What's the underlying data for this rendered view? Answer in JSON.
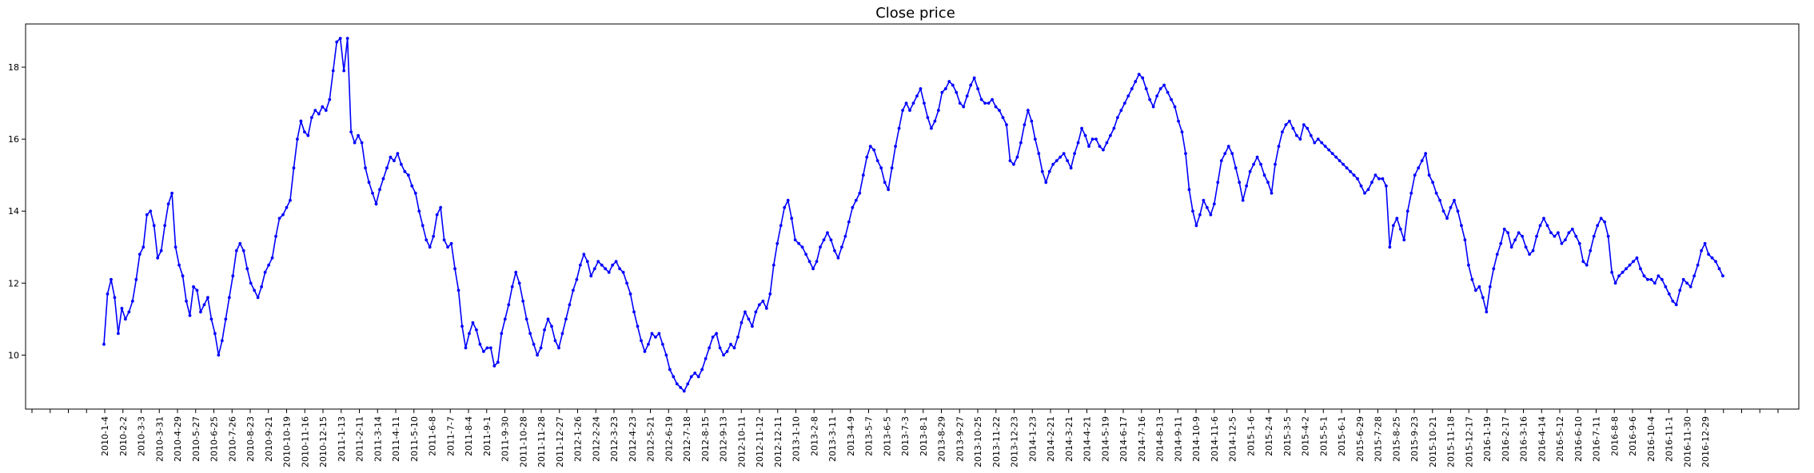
{
  "chart_data": {
    "type": "line",
    "title": "Close price",
    "xlabel": "",
    "ylabel": "",
    "ylim": [
      8.5,
      19.2
    ],
    "yticks": [
      10,
      12,
      14,
      16,
      18
    ],
    "grid": false,
    "legend": "none",
    "colors": {
      "line": "#0000ff",
      "marker": "#0000ff",
      "axes": "#000000"
    },
    "x_tick_labels": [
      "2010-1-4",
      "2010-2-2",
      "2010-3-3",
      "2010-3-31",
      "2010-4-29",
      "2010-5-27",
      "2010-6-25",
      "2010-7-26",
      "2010-8-23",
      "2010-9-21",
      "2010-10-19",
      "2010-11-16",
      "2010-12-15",
      "2011-1-13",
      "2011-2-11",
      "2011-3-14",
      "2011-4-11",
      "2011-5-10",
      "2011-6-8",
      "2011-7-7",
      "2011-8-4",
      "2011-9-1",
      "2011-9-30",
      "2011-10-28",
      "2011-11-28",
      "2011-12-27",
      "2012-1-26",
      "2012-2-24",
      "2012-3-23",
      "2012-4-23",
      "2012-5-21",
      "2012-6-19",
      "2012-7-18",
      "2012-8-15",
      "2012-9-13",
      "2012-10-11",
      "2012-11-12",
      "2012-12-11",
      "2013-1-10",
      "2013-2-8",
      "2013-3-11",
      "2013-4-9",
      "2013-5-7",
      "2013-6-5",
      "2013-7-3",
      "2013-8-1",
      "2013-8-29",
      "2013-9-27",
      "2013-10-25",
      "2013-11-22",
      "2013-12-23",
      "2014-1-23",
      "2014-2-21",
      "2014-3-21",
      "2014-4-21",
      "2014-5-19",
      "2014-6-17",
      "2014-7-16",
      "2014-8-13",
      "2014-9-11",
      "2014-10-9",
      "2014-11-6",
      "2014-12-5",
      "2015-1-6",
      "2015-2-4",
      "2015-3-5",
      "2015-4-2",
      "2015-5-1",
      "2015-6-1",
      "2015-6-29",
      "2015-7-28",
      "2015-8-25",
      "2015-9-23",
      "2015-10-21",
      "2015-11-18",
      "2015-12-17",
      "2016-1-19",
      "2016-2-17",
      "2016-3-16",
      "2016-4-14",
      "2016-5-12",
      "2016-6-10",
      "2016-7-11",
      "2016-8-8",
      "2016-9-6",
      "2016-10-4",
      "2016-11-1",
      "2016-11-30",
      "2016-12-29"
    ],
    "series": [
      {
        "values": [
          10.3,
          11.7,
          12.1,
          11.6,
          10.6,
          11.3,
          11.0,
          11.2,
          11.5,
          12.1,
          12.8,
          13.0,
          13.9,
          14.0,
          13.6,
          12.7,
          12.9,
          13.6,
          14.2,
          14.5,
          13.0,
          12.5,
          12.2,
          11.5,
          11.1,
          11.9,
          11.8,
          11.2,
          11.4,
          11.6,
          11.0,
          10.6,
          10.0,
          10.4,
          11.0,
          11.6,
          12.2,
          12.9,
          13.1,
          12.9,
          12.4,
          12.0,
          11.8,
          11.6,
          11.9,
          12.3,
          12.5,
          12.7,
          13.3,
          13.8,
          13.9,
          14.1,
          14.3,
          15.2,
          16.0,
          16.5,
          16.2,
          16.1,
          16.6,
          16.8,
          16.7,
          16.9,
          16.8,
          17.1,
          17.9,
          18.7,
          18.8,
          17.9,
          18.8,
          16.2,
          15.9,
          16.1,
          15.9,
          15.2,
          14.8,
          14.5,
          14.2,
          14.6,
          14.9,
          15.2,
          15.5,
          15.4,
          15.6,
          15.3,
          15.1,
          15.0,
          14.7,
          14.5,
          14.0,
          13.6,
          13.2,
          13.0,
          13.3,
          13.9,
          14.1,
          13.2,
          13.0,
          13.1,
          12.4,
          11.8,
          10.8,
          10.2,
          10.6,
          10.9,
          10.7,
          10.3,
          10.1,
          10.2,
          10.2,
          9.7,
          9.8,
          10.6,
          11.0,
          11.4,
          11.9,
          12.3,
          12.0,
          11.5,
          11.0,
          10.6,
          10.3,
          10.0,
          10.2,
          10.7,
          11.0,
          10.8,
          10.4,
          10.2,
          10.6,
          11.0,
          11.4,
          11.8,
          12.1,
          12.5,
          12.8,
          12.6,
          12.2,
          12.4,
          12.6,
          12.5,
          12.4,
          12.3,
          12.5,
          12.6,
          12.4,
          12.3,
          12.0,
          11.7,
          11.2,
          10.8,
          10.4,
          10.1,
          10.3,
          10.6,
          10.5,
          10.6,
          10.3,
          10.0,
          9.6,
          9.4,
          9.2,
          9.1,
          9.0,
          9.2,
          9.4,
          9.5,
          9.4,
          9.6,
          9.9,
          10.2,
          10.5,
          10.6,
          10.2,
          10.0,
          10.1,
          10.3,
          10.2,
          10.5,
          10.9,
          11.2,
          11.0,
          10.8,
          11.2,
          11.4,
          11.5,
          11.3,
          11.7,
          12.5,
          13.1,
          13.6,
          14.1,
          14.3,
          13.8,
          13.2,
          13.1,
          13.0,
          12.8,
          12.6,
          12.4,
          12.6,
          13.0,
          13.2,
          13.4,
          13.2,
          12.9,
          12.7,
          13.0,
          13.3,
          13.7,
          14.1,
          14.3,
          14.5,
          15.0,
          15.5,
          15.8,
          15.7,
          15.4,
          15.2,
          14.8,
          14.6,
          15.2,
          15.8,
          16.3,
          16.8,
          17.0,
          16.8,
          17.0,
          17.2,
          17.4,
          17.0,
          16.6,
          16.3,
          16.5,
          16.8,
          17.3,
          17.4,
          17.6,
          17.5,
          17.3,
          17.0,
          16.9,
          17.2,
          17.5,
          17.7,
          17.4,
          17.1,
          17.0,
          17.0,
          17.1,
          16.9,
          16.8,
          16.6,
          16.4,
          15.4,
          15.3,
          15.5,
          15.9,
          16.4,
          16.8,
          16.5,
          16.0,
          15.6,
          15.1,
          14.8,
          15.1,
          15.3,
          15.4,
          15.5,
          15.6,
          15.4,
          15.2,
          15.6,
          15.9,
          16.3,
          16.1,
          15.8,
          16.0,
          16.0,
          15.8,
          15.7,
          15.9,
          16.1,
          16.3,
          16.6,
          16.8,
          17.0,
          17.2,
          17.4,
          17.6,
          17.8,
          17.7,
          17.4,
          17.1,
          16.9,
          17.2,
          17.4,
          17.5,
          17.3,
          17.1,
          16.9,
          16.5,
          16.2,
          15.6,
          14.6,
          14.0,
          13.6,
          13.9,
          14.3,
          14.1,
          13.9,
          14.2,
          14.8,
          15.4,
          15.6,
          15.8,
          15.6,
          15.2,
          14.8,
          14.3,
          14.7,
          15.1,
          15.3,
          15.5,
          15.3,
          15.0,
          14.8,
          14.5,
          15.3,
          15.8,
          16.2,
          16.4,
          16.5,
          16.3,
          16.1,
          16.0,
          16.4,
          16.3,
          16.1,
          15.9,
          16.0,
          15.9,
          15.8,
          15.7,
          15.6,
          15.5,
          15.4,
          15.3,
          15.2,
          15.1,
          15.0,
          14.9,
          14.7,
          14.5,
          14.6,
          14.8,
          15.0,
          14.9,
          14.9,
          14.7,
          13.0,
          13.6,
          13.8,
          13.5,
          13.2,
          14.0,
          14.5,
          15.0,
          15.2,
          15.4,
          15.6,
          15.0,
          14.8,
          14.5,
          14.3,
          14.0,
          13.8,
          14.1,
          14.3,
          14.0,
          13.6,
          13.2,
          12.5,
          12.1,
          11.8,
          11.9,
          11.6,
          11.2,
          11.9,
          12.4,
          12.8,
          13.1,
          13.5,
          13.4,
          13.0,
          13.2,
          13.4,
          13.3,
          13.0,
          12.8,
          12.9,
          13.3,
          13.6,
          13.8,
          13.6,
          13.4,
          13.3,
          13.4,
          13.1,
          13.2,
          13.4,
          13.5,
          13.3,
          13.1,
          12.6,
          12.5,
          12.9,
          13.3,
          13.6,
          13.8,
          13.7,
          13.3,
          12.3,
          12.0,
          12.2,
          12.3,
          12.4,
          12.5,
          12.6,
          12.7,
          12.4,
          12.2,
          12.1,
          12.1,
          12.0,
          12.2,
          12.1,
          11.9,
          11.7,
          11.5,
          11.4,
          11.8,
          12.1,
          12.0,
          11.9,
          12.2,
          12.5,
          12.9,
          13.1,
          12.8,
          12.7,
          12.6,
          12.4,
          12.2
        ]
      }
    ]
  }
}
